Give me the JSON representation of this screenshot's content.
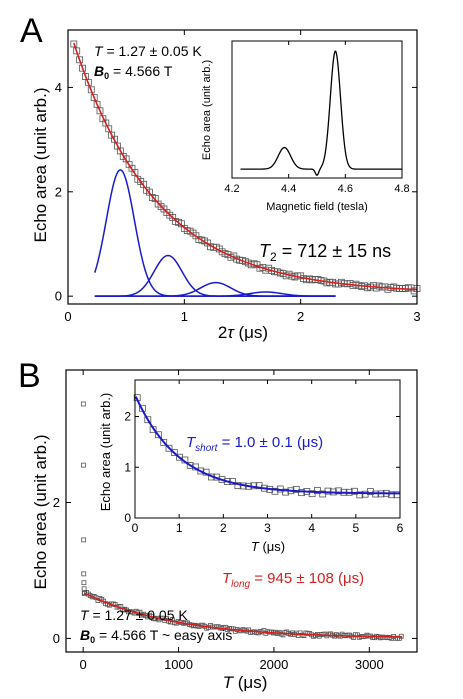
{
  "panel_a": {
    "letter": "A",
    "annotation_T_italic": "T",
    "annotation_T_value": " = 1.27 ± 0.05 K",
    "annotation_B_bold": "B",
    "annotation_B_sub": "0",
    "annotation_B_value": " = 4.566 T",
    "t2_italic": "T",
    "t2_sub": "2",
    "t2_value": " = 712 ± 15 ns",
    "xlabel_prefix": "2",
    "xlabel_tau": "τ",
    "xlabel_unit": " (μs)",
    "ylabel": "Echo area (unit arb.)",
    "inset_xlabel": "Magnetic field (tesla)",
    "inset_ylabel": "Echo area (unit arb.)"
  },
  "panel_b": {
    "letter": "B",
    "annotation_T_italic": "T",
    "annotation_T_value": " = 1.27 ± 0.05 K",
    "annotation_B_bold": "B",
    "annotation_B_sub": "0",
    "annotation_B_value": " = 4.566 T ~ easy axis",
    "tlong_italic": "T",
    "tlong_sub": "long",
    "tlong_value": " = 945 ± 108 (μs)",
    "tshort_italic": "T",
    "tshort_sub": "short",
    "tshort_value": " = 1.0 ± 0.1 (μs)",
    "xlabel_italic": "T",
    "xlabel_unit": " (μs)",
    "ylabel": "Echo area (unit arb.)",
    "inset_xlabel_italic": "T",
    "inset_xlabel_unit": " (μs)",
    "inset_ylabel": "Echo area (unit arb.)"
  },
  "colors": {
    "fit_red": "#d42020",
    "component_blue": "#1a1acc",
    "data_marker": "#555555",
    "line_black": "#000000"
  },
  "chart_data": [
    {
      "type": "scatter",
      "panel": "A",
      "xlabel": "2τ (μs)",
      "ylabel": "Echo area (unit arb.)",
      "xlim": [
        0,
        3
      ],
      "ylim": [
        -0.15,
        5.1
      ],
      "x_ticks": [
        0,
        1,
        2,
        3
      ],
      "y_ticks": [
        0,
        2,
        4
      ],
      "x_tick_labels": [
        "0",
        "1",
        "2",
        "3"
      ],
      "y_tick_labels": [
        "0",
        "2",
        "4"
      ],
      "decay": {
        "amplitude": 5.15,
        "tau": 0.712,
        "offset": 0.05,
        "x_start": 0.05,
        "x_end": 3.0
      },
      "series": [
        {
          "name": "data",
          "style": "open-square",
          "x_start": 0.05,
          "x_end": 3.0,
          "step": 0.025
        },
        {
          "name": "fit",
          "style": "red-line"
        },
        {
          "name": "component-1",
          "style": "blue-line",
          "center": 0.45,
          "sigma": 0.12,
          "amplitude": 2.42,
          "x_start": 0.23,
          "x_end": 2.3
        },
        {
          "name": "component-2",
          "style": "blue-line",
          "center": 0.86,
          "sigma": 0.12,
          "amplitude": 0.78,
          "x_start": 0.23,
          "x_end": 2.3
        },
        {
          "name": "component-3",
          "style": "blue-line",
          "center": 1.27,
          "sigma": 0.13,
          "amplitude": 0.26,
          "x_start": 0.23,
          "x_end": 2.3
        },
        {
          "name": "component-4",
          "style": "blue-line",
          "center": 1.7,
          "sigma": 0.14,
          "amplitude": 0.08,
          "x_start": 0.23,
          "x_end": 2.3
        }
      ]
    },
    {
      "type": "line",
      "panel": "A-inset",
      "xlabel": "Magnetic field (tesla)",
      "ylabel": "Echo area (unit arb.)",
      "xlim": [
        4.2,
        4.8
      ],
      "ylim": [
        0,
        1.08
      ],
      "x_ticks": [
        4.2,
        4.4,
        4.6,
        4.8
      ],
      "x_tick_labels": [
        "4.2",
        "4.4",
        "4.6",
        "4.8"
      ],
      "baseline": 0.07,
      "peaks": [
        {
          "center": 4.385,
          "sigma": 0.022,
          "amplitude": 0.17
        },
        {
          "center": 4.565,
          "sigma": 0.018,
          "amplitude": 0.93
        }
      ],
      "dip": {
        "center": 4.5,
        "sigma": 0.006,
        "depth": 0.05
      },
      "x_start": 4.23,
      "x_end": 4.8
    },
    {
      "type": "scatter",
      "panel": "B",
      "xlabel": "T (μs)",
      "ylabel": "Echo area (unit arb.)",
      "xlim": [
        -180,
        3500
      ],
      "ylim": [
        -0.2,
        3.95
      ],
      "x_ticks": [
        0,
        1000,
        2000,
        3000
      ],
      "y_ticks": [
        0,
        2
      ],
      "x_tick_labels": [
        "0",
        "1000",
        "2000",
        "3000"
      ],
      "y_tick_labels": [
        "0",
        "2"
      ],
      "early_points": {
        "x": [
          2,
          3,
          5,
          6,
          8,
          10,
          12
        ],
        "y": [
          3.45,
          2.55,
          1.45,
          0.95,
          0.82,
          0.73,
          0.66
        ]
      },
      "decay": {
        "amplitude": 0.68,
        "tau": 945,
        "offset": 0.0,
        "x_start": 15,
        "x_end": 3350
      },
      "series": [
        {
          "name": "data",
          "style": "open-square",
          "x_start": 15,
          "x_end": 3350,
          "step": 20
        },
        {
          "name": "fit",
          "style": "red-line"
        }
      ]
    },
    {
      "type": "scatter",
      "panel": "B-inset",
      "xlabel": "T (μs)",
      "ylabel": "Echo area (unit arb.)",
      "xlim": [
        0,
        6
      ],
      "ylim": [
        0,
        2.72
      ],
      "x_ticks": [
        0,
        1,
        2,
        3,
        4,
        5,
        6
      ],
      "y_ticks": [
        0,
        1,
        2
      ],
      "x_tick_labels": [
        "0",
        "1",
        "2",
        "3",
        "4",
        "5",
        "6"
      ],
      "y_tick_labels": [
        "0",
        "1",
        "2"
      ],
      "decay": {
        "amplitude": 1.95,
        "tau": 1.0,
        "offset": 0.48,
        "x_start": 0.02,
        "x_end": 6.0
      },
      "series": [
        {
          "name": "data",
          "style": "open-square",
          "x_start": 0.05,
          "x_end": 6.0,
          "step": 0.12
        },
        {
          "name": "fit",
          "style": "blue-line"
        }
      ]
    }
  ]
}
